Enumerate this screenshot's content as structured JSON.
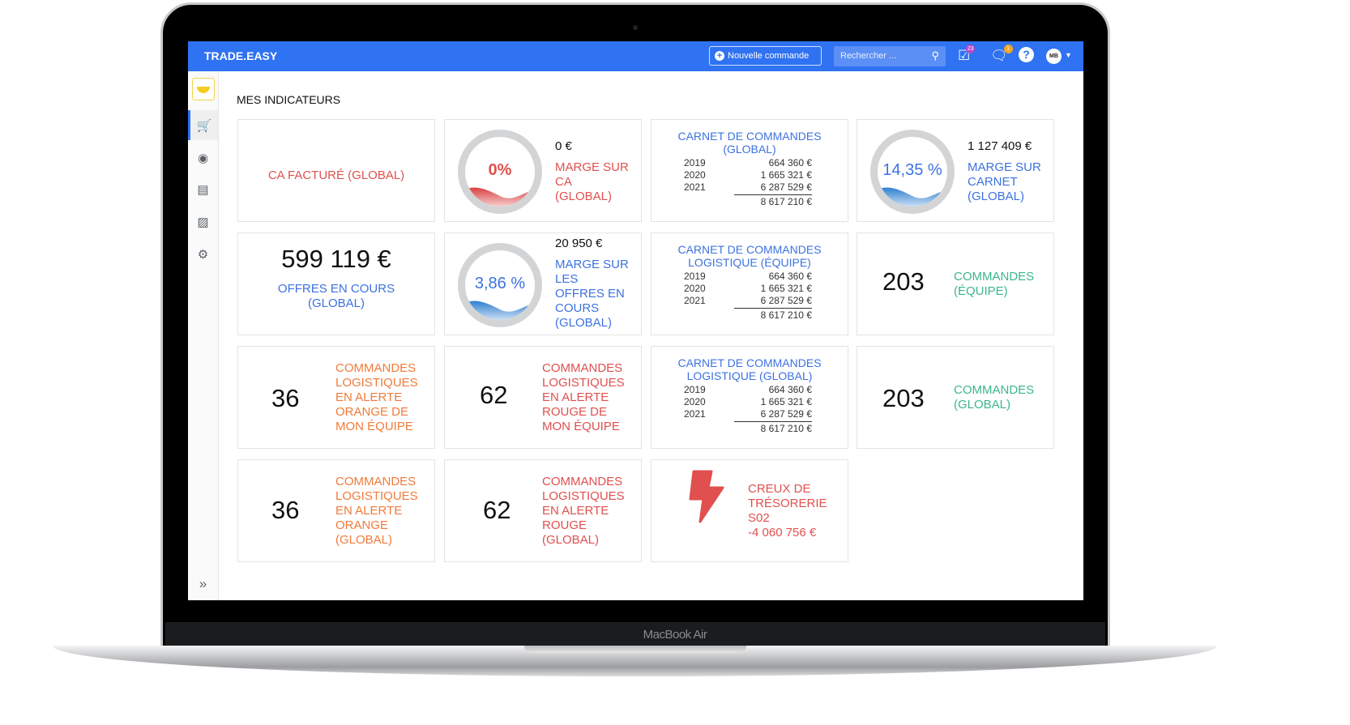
{
  "device": {
    "label": "MacBook Air"
  },
  "header": {
    "logo": "TRADE.EASY",
    "new_order": "Nouvelle commande",
    "search_placeholder": "Rechercher ...",
    "tasks_badge": "23",
    "notif_badge": "1",
    "avatar": "MB",
    "accent": "#2f72f2"
  },
  "sidebar": {
    "items": [
      "cart-icon",
      "money-icon",
      "store-icon",
      "contacts-icon",
      "gear-icon"
    ],
    "expand": "chevrons-right-icon"
  },
  "page": {
    "title": "MES INDICATEURS"
  },
  "cards": {
    "ca": {
      "label": "CA FACTURÉ (GLOBAL)"
    },
    "marge_ca": {
      "gauge": "0%",
      "amount": "0 €",
      "label": [
        "MARGE SUR",
        "CA",
        "(GLOBAL)"
      ]
    },
    "carnet_global": {
      "title": [
        "CARNET DE COMMANDES",
        "(GLOBAL)"
      ],
      "rows": [
        {
          "year": "2019",
          "value": "664 360 €"
        },
        {
          "year": "2020",
          "value": "1 665 321 €"
        },
        {
          "year": "2021",
          "value": "6 287 529 €"
        }
      ],
      "total": "8 617 210 €"
    },
    "marge_carnet": {
      "gauge": "14,35 %",
      "amount": "1 127 409 €",
      "label": [
        "MARGE SUR",
        "CARNET",
        "(GLOBAL)"
      ]
    },
    "offres": {
      "value": "599 119 €",
      "label": [
        "OFFRES EN COURS",
        "(GLOBAL)"
      ]
    },
    "marge_offres": {
      "gauge": "3,86 %",
      "amount": "20 950 €",
      "label": [
        "MARGE SUR",
        "LES",
        "OFFRES EN",
        "COURS",
        "(GLOBAL)"
      ]
    },
    "carnet_equipe": {
      "title": [
        "CARNET DE COMMANDES",
        "LOGISTIQUE (ÉQUIPE)"
      ],
      "rows": [
        {
          "year": "2019",
          "value": "664 360 €"
        },
        {
          "year": "2020",
          "value": "1 665 321 €"
        },
        {
          "year": "2021",
          "value": "6 287 529 €"
        }
      ],
      "total": "8 617 210 €"
    },
    "cmd_equipe": {
      "value": "203",
      "label": [
        "COMMANDES",
        "(ÉQUIPE)"
      ]
    },
    "orange_equipe": {
      "value": "36",
      "label": [
        "COMMANDES",
        "LOGISTIQUES",
        "EN ALERTE",
        "ORANGE DE",
        "MON ÉQUIPE"
      ]
    },
    "rouge_equipe": {
      "value": "62",
      "label": [
        "COMMANDES",
        "LOGISTIQUES",
        "EN ALERTE",
        "ROUGE DE",
        "MON ÉQUIPE"
      ]
    },
    "carnet_log_global": {
      "title": [
        "CARNET DE COMMANDES",
        "LOGISTIQUE (GLOBAL)"
      ],
      "rows": [
        {
          "year": "2019",
          "value": "664 360 €"
        },
        {
          "year": "2020",
          "value": "1 665 321 €"
        },
        {
          "year": "2021",
          "value": "6 287 529 €"
        }
      ],
      "total": "8 617 210 €"
    },
    "cmd_global": {
      "value": "203",
      "label": [
        "COMMANDES",
        "(GLOBAL)"
      ]
    },
    "orange_global": {
      "value": "36",
      "label": [
        "COMMANDES",
        "LOGISTIQUES",
        "EN ALERTE",
        "ORANGE",
        "(GLOBAL)"
      ]
    },
    "rouge_global": {
      "value": "62",
      "label": [
        "COMMANDES",
        "LOGISTIQUES",
        "EN ALERTE",
        "ROUGE",
        "(GLOBAL)"
      ]
    },
    "tresorerie": {
      "icon": "lightning-icon",
      "label": [
        "CREUX DE",
        "TRÉSORERIE",
        "S02",
        "-4 060 756 €"
      ]
    }
  },
  "colors": {
    "red": "#e0504f",
    "blue": "#3d72e0",
    "orange": "#f07b3a",
    "green": "#3cb68c"
  }
}
